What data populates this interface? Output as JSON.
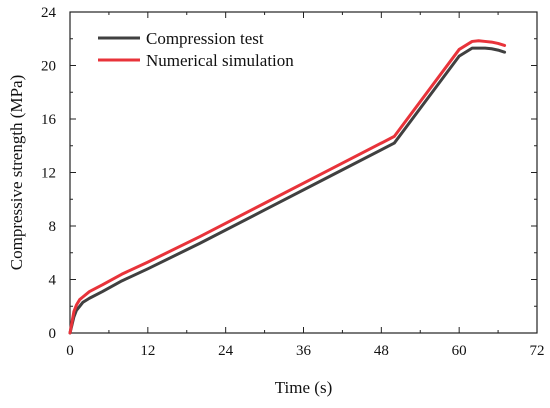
{
  "chart_data": {
    "type": "line",
    "title": "",
    "xlabel": "Time (s)",
    "ylabel": "Compressive strength (MPa)",
    "xlim": [
      0,
      72
    ],
    "ylim": [
      0,
      24
    ],
    "xticks": [
      "0",
      "12",
      "24",
      "36",
      "48",
      "60",
      "72"
    ],
    "yticks": [
      "0",
      "4",
      "8",
      "12",
      "16",
      "20",
      "24"
    ],
    "grid": false,
    "legend_position": "top-left",
    "series": [
      {
        "name": "Compression test",
        "color": "#404040",
        "x": [
          0,
          0.3,
          0.6,
          1.0,
          1.5,
          2.0,
          3.0,
          5.0,
          8.0,
          12,
          20,
          30,
          40,
          50,
          60,
          62,
          63,
          64,
          65,
          66,
          67
        ],
        "y": [
          0,
          0.6,
          1.2,
          1.7,
          2.0,
          2.3,
          2.6,
          3.1,
          3.9,
          4.8,
          6.7,
          9.2,
          11.7,
          14.2,
          20.7,
          21.3,
          21.3,
          21.3,
          21.25,
          21.15,
          21.0
        ]
      },
      {
        "name": "Numerical simulation",
        "color": "#e8333a",
        "x": [
          0,
          0.3,
          0.6,
          1.0,
          1.5,
          2.0,
          3.0,
          5.0,
          8.0,
          12,
          20,
          30,
          40,
          50,
          60,
          62,
          63,
          64,
          65,
          66,
          67
        ],
        "y": [
          0,
          0.8,
          1.6,
          2.1,
          2.5,
          2.7,
          3.1,
          3.6,
          4.4,
          5.3,
          7.2,
          9.7,
          12.2,
          14.7,
          21.2,
          21.8,
          21.85,
          21.8,
          21.75,
          21.65,
          21.5
        ]
      }
    ]
  }
}
